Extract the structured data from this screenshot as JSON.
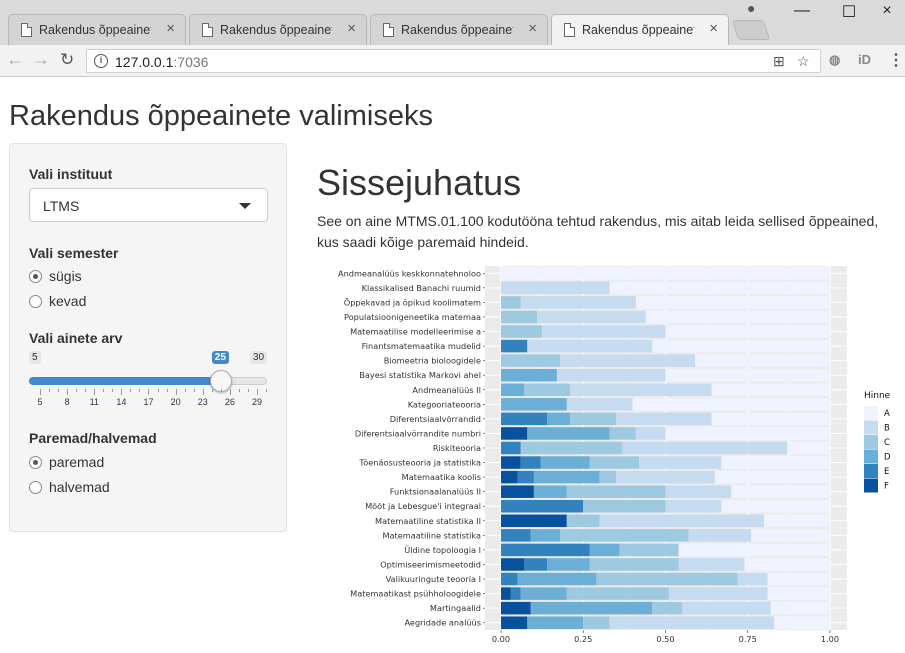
{
  "browser": {
    "tabs": [
      {
        "title": "Rakendus õppeainete",
        "close": "×",
        "active": false
      },
      {
        "title": "Rakendus õppeainete",
        "close": "×",
        "active": false
      },
      {
        "title": "Rakendus õppeainete",
        "close": "×",
        "active": false
      },
      {
        "title": "Rakendus õppeainete",
        "close": "×",
        "active": true
      }
    ],
    "url_host": "127.0.0.1",
    "url_port": ":7036",
    "window_controls": [
      "—",
      "☐",
      "×"
    ],
    "extension_label": "iD"
  },
  "app": {
    "title": "Rakendus õppeainete valimiseks"
  },
  "sidebar": {
    "institute_label": "Vali instituut",
    "institute_value": "LTMS",
    "semester_label": "Vali semester",
    "semester_options": [
      "sügis",
      "kevad"
    ],
    "semester_selected": "sügis",
    "count_label": "Vali ainete arv",
    "slider": {
      "min": 5,
      "max": 30,
      "value": 25,
      "min_label": "5",
      "max_label": "30",
      "value_label": "25",
      "ticks": [
        "5",
        "8",
        "11",
        "14",
        "17",
        "20",
        "23",
        "26",
        "29"
      ]
    },
    "order_label": "Paremad/halvemad",
    "order_options": [
      "paremad",
      "halvemad"
    ],
    "order_selected": "paremad"
  },
  "main": {
    "heading": "Sissejuhatus",
    "intro": "See on aine MTMS.01.100 kodutööna tehtud rakendus, mis aitab leida sellised õppeained, kus saadi kõige paremaid hindeid."
  },
  "colors": {
    "A": "#eff3ff",
    "B": "#c6dbef",
    "C": "#9ecae1",
    "D": "#6baed6",
    "E": "#3182bd",
    "F": "#08519c",
    "panel": "#ebebeb",
    "grid": "#ffffff"
  },
  "chart_data": {
    "type": "bar",
    "orientation": "horizontal",
    "stacked": true,
    "xlim": [
      0,
      1
    ],
    "x_ticks": [
      "0.00",
      "0.25",
      "0.50",
      "0.75",
      "1.00"
    ],
    "legend_title": "Hinne",
    "legend_position": "right",
    "series_names": [
      "A",
      "B",
      "C",
      "D",
      "E",
      "F"
    ],
    "categories": [
      "Andmeanalüüs keskkonnatehnoloo",
      "Klassikalised Banachi ruumid",
      "Õppekavad ja õpikud koolimatem",
      "Populatsioonigeneetika matemaa",
      "Matemaatilise modelleerimise a",
      "Finantsmatemaatika mudelid",
      "Biomeetria bioloogidele",
      "Bayesi statistika Markovi ahel",
      "Andmeanalüüs II",
      "Kategooriateooria",
      "Diferentsiaalvõrrandid",
      "Diferentsiaalvõrrandite numbri",
      "Riskiteooria",
      "Tõenäosusteooria ja statistika",
      "Matemaatika koolis",
      "Funktsionaalanalüüs II",
      "Mõõt ja Lebesgue'i integraal",
      "Matemaatiline statistika II",
      "Matemaatiline statistika",
      "Üldine topoloogia I",
      "Optimiseerimismeetodid",
      "Valikuuringute teooria I",
      "Matemaatikast psühholoogidele",
      "Martingaalid",
      "Aegridade analüüs"
    ],
    "stacks_F_to_A": [
      [
        0,
        0,
        0,
        0,
        0,
        1.0
      ],
      [
        0,
        0,
        0,
        0,
        0.33,
        0.67
      ],
      [
        0,
        0,
        0,
        0.06,
        0.35,
        0.59
      ],
      [
        0,
        0,
        0,
        0.11,
        0.33,
        0.56
      ],
      [
        0,
        0,
        0,
        0.125,
        0.375,
        0.5
      ],
      [
        0,
        0.08,
        0,
        0,
        0.38,
        0.54
      ],
      [
        0,
        0,
        0,
        0.18,
        0.41,
        0.41
      ],
      [
        0,
        0,
        0.17,
        0,
        0.33,
        0.5
      ],
      [
        0,
        0,
        0.07,
        0.14,
        0.43,
        0.36
      ],
      [
        0,
        0,
        0.2,
        0,
        0.2,
        0.6
      ],
      [
        0,
        0.14,
        0.07,
        0.14,
        0.29,
        0.36
      ],
      [
        0.08,
        0,
        0.25,
        0.08,
        0.09,
        0.5
      ],
      [
        0,
        0.06,
        0,
        0.31,
        0.5,
        0.13
      ],
      [
        0.06,
        0.06,
        0.15,
        0.15,
        0.25,
        0.33
      ],
      [
        0.05,
        0.05,
        0.2,
        0.05,
        0.3,
        0.35
      ],
      [
        0.1,
        0,
        0.1,
        0.3,
        0.2,
        0.3
      ],
      [
        0,
        0.25,
        0,
        0.25,
        0.17,
        0.33
      ],
      [
        0.2,
        0,
        0,
        0.1,
        0.5,
        0.2
      ],
      [
        0,
        0.09,
        0.09,
        0.39,
        0.19,
        0.24
      ],
      [
        0,
        0.27,
        0.09,
        0.18,
        0,
        0.46
      ],
      [
        0.07,
        0.07,
        0.13,
        0.27,
        0.2,
        0.26
      ],
      [
        0,
        0.05,
        0.24,
        0.43,
        0.09,
        0.19
      ],
      [
        0.03,
        0.03,
        0.14,
        0.31,
        0.3,
        0.19
      ],
      [
        0.09,
        0,
        0.37,
        0.09,
        0.27,
        0.18
      ],
      [
        0.08,
        0,
        0.17,
        0.08,
        0.5,
        0.17
      ]
    ]
  }
}
